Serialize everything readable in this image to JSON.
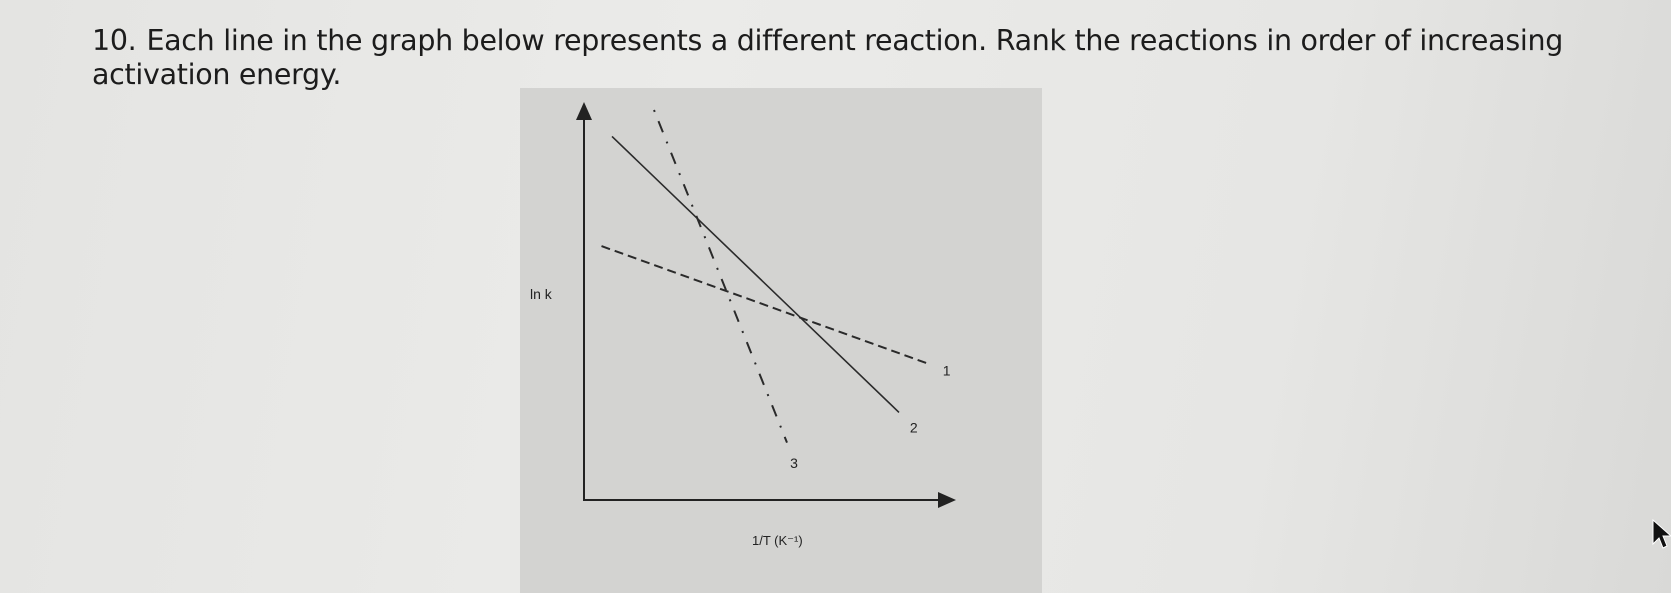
{
  "question": {
    "number": "10.",
    "text": "Each line in the graph below represents a different reaction. Rank the reactions in order of increasing activation energy."
  },
  "chart_data": {
    "type": "line",
    "xlabel": "1/T (K⁻¹)",
    "ylabel": "ln k",
    "xlim": [
      0,
      10
    ],
    "ylim": [
      0,
      10
    ],
    "grid": false,
    "ticks": "none",
    "series": [
      {
        "name": "1",
        "style": "dashed",
        "label": "1",
        "points": [
          [
            0.5,
            6.4
          ],
          [
            9.8,
            3.3
          ]
        ]
      },
      {
        "name": "2",
        "style": "solid",
        "label": "2",
        "points": [
          [
            0.8,
            9.3
          ],
          [
            9.0,
            2.0
          ]
        ]
      },
      {
        "name": "3",
        "style": "dash-dot",
        "label": "3",
        "points": [
          [
            2.0,
            10.0
          ],
          [
            5.8,
            1.2
          ]
        ]
      }
    ],
    "colors": {
      "line": "#2a2a2a",
      "figure_background": "#d3d3d1"
    }
  }
}
